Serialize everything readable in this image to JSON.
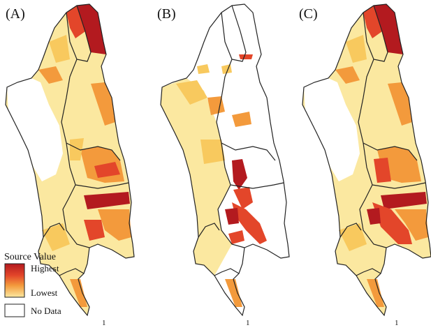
{
  "panels": [
    {
      "label": "(A)",
      "scale_mark": "1"
    },
    {
      "label": "(B)",
      "scale_mark": "1"
    },
    {
      "label": "(C)",
      "scale_mark": "1"
    }
  ],
  "legend": {
    "title": "Source Value",
    "highest": "Highest",
    "lowest": "Lowest",
    "no_data": "No Data"
  },
  "colors": {
    "highest": "#b31a1f",
    "high": "#e3462a",
    "mid": "#f39a3c",
    "low": "#f8c95e",
    "lowest": "#fbe8a0",
    "no_data": "#ffffff",
    "outline": "#222222",
    "inner_line": "#bbbbbb"
  }
}
